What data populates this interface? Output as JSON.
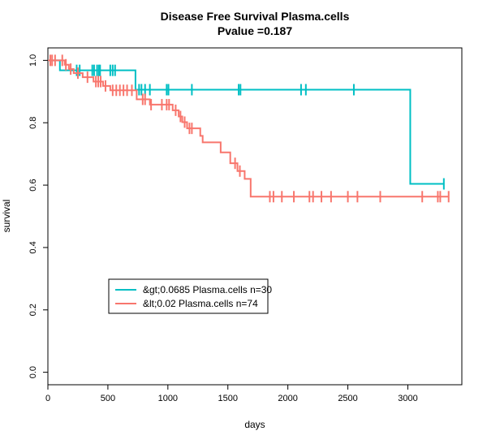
{
  "chart_data": {
    "type": "line",
    "title": "Disease Free Survival Plasma.cells",
    "subtitle": "Pvalue =0.187",
    "xlabel": "days",
    "ylabel": "survival",
    "xlim": [
      0,
      3450
    ],
    "ylim": [
      -0.04,
      1.04
    ],
    "xticks": [
      "0",
      "500",
      "1000",
      "1500",
      "2000",
      "2500",
      "3000"
    ],
    "yticks": [
      "0.0",
      "0.2",
      "0.4",
      "0.6",
      "0.8",
      "1.0"
    ],
    "grid": false,
    "legend": {
      "placement": "lower-left",
      "entries": [
        "&gt;0.0685 Plasma.cells n=30",
        "&lt;0.02 Plasma.cells n=74"
      ]
    },
    "series": [
      {
        "name": "&gt;0.0685 Plasma.cells n=30",
        "color": "#00BFC4",
        "steps": [
          [
            0,
            1.0
          ],
          [
            100,
            0.968
          ],
          [
            730,
            0.906
          ],
          [
            3020,
            0.604
          ],
          [
            3300,
            0.604
          ]
        ],
        "censor": [
          [
            240,
            0.968
          ],
          [
            265,
            0.968
          ],
          [
            370,
            0.968
          ],
          [
            385,
            0.968
          ],
          [
            410,
            0.968
          ],
          [
            425,
            0.968
          ],
          [
            435,
            0.968
          ],
          [
            520,
            0.968
          ],
          [
            540,
            0.968
          ],
          [
            560,
            0.968
          ],
          [
            760,
            0.906
          ],
          [
            780,
            0.906
          ],
          [
            810,
            0.906
          ],
          [
            850,
            0.906
          ],
          [
            990,
            0.906
          ],
          [
            1005,
            0.906
          ],
          [
            1200,
            0.906
          ],
          [
            1590,
            0.906
          ],
          [
            1605,
            0.906
          ],
          [
            2110,
            0.906
          ],
          [
            2150,
            0.906
          ],
          [
            2550,
            0.906
          ],
          [
            3300,
            0.604
          ]
        ]
      },
      {
        "name": "&lt;0.02 Plasma.cells n=74",
        "color": "#F8766D",
        "steps": [
          [
            0,
            1.0
          ],
          [
            140,
            0.986
          ],
          [
            175,
            0.972
          ],
          [
            215,
            0.959
          ],
          [
            290,
            0.946
          ],
          [
            380,
            0.932
          ],
          [
            460,
            0.918
          ],
          [
            520,
            0.904
          ],
          [
            740,
            0.875
          ],
          [
            850,
            0.858
          ],
          [
            1040,
            0.84
          ],
          [
            1090,
            0.82
          ],
          [
            1120,
            0.802
          ],
          [
            1160,
            0.782
          ],
          [
            1270,
            0.758
          ],
          [
            1290,
            0.737
          ],
          [
            1440,
            0.705
          ],
          [
            1520,
            0.67
          ],
          [
            1580,
            0.645
          ],
          [
            1640,
            0.62
          ],
          [
            1690,
            0.563
          ],
          [
            3340,
            0.563
          ]
        ],
        "censor": [
          [
            20,
            1.0
          ],
          [
            35,
            1.0
          ],
          [
            60,
            1.0
          ],
          [
            120,
            1.0
          ],
          [
            150,
            0.986
          ],
          [
            190,
            0.972
          ],
          [
            250,
            0.959
          ],
          [
            330,
            0.946
          ],
          [
            400,
            0.932
          ],
          [
            420,
            0.932
          ],
          [
            440,
            0.932
          ],
          [
            480,
            0.918
          ],
          [
            540,
            0.904
          ],
          [
            570,
            0.904
          ],
          [
            600,
            0.904
          ],
          [
            630,
            0.904
          ],
          [
            660,
            0.904
          ],
          [
            700,
            0.904
          ],
          [
            790,
            0.875
          ],
          [
            810,
            0.875
          ],
          [
            860,
            0.858
          ],
          [
            950,
            0.858
          ],
          [
            990,
            0.858
          ],
          [
            1010,
            0.858
          ],
          [
            1065,
            0.84
          ],
          [
            1105,
            0.82
          ],
          [
            1140,
            0.802
          ],
          [
            1180,
            0.782
          ],
          [
            1200,
            0.782
          ],
          [
            1560,
            0.67
          ],
          [
            1600,
            0.645
          ],
          [
            1850,
            0.563
          ],
          [
            1880,
            0.563
          ],
          [
            1950,
            0.563
          ],
          [
            2050,
            0.563
          ],
          [
            2180,
            0.563
          ],
          [
            2210,
            0.563
          ],
          [
            2280,
            0.563
          ],
          [
            2360,
            0.563
          ],
          [
            2500,
            0.563
          ],
          [
            2580,
            0.563
          ],
          [
            2770,
            0.563
          ],
          [
            3120,
            0.563
          ],
          [
            3250,
            0.563
          ],
          [
            3270,
            0.563
          ],
          [
            3340,
            0.563
          ]
        ]
      }
    ]
  }
}
